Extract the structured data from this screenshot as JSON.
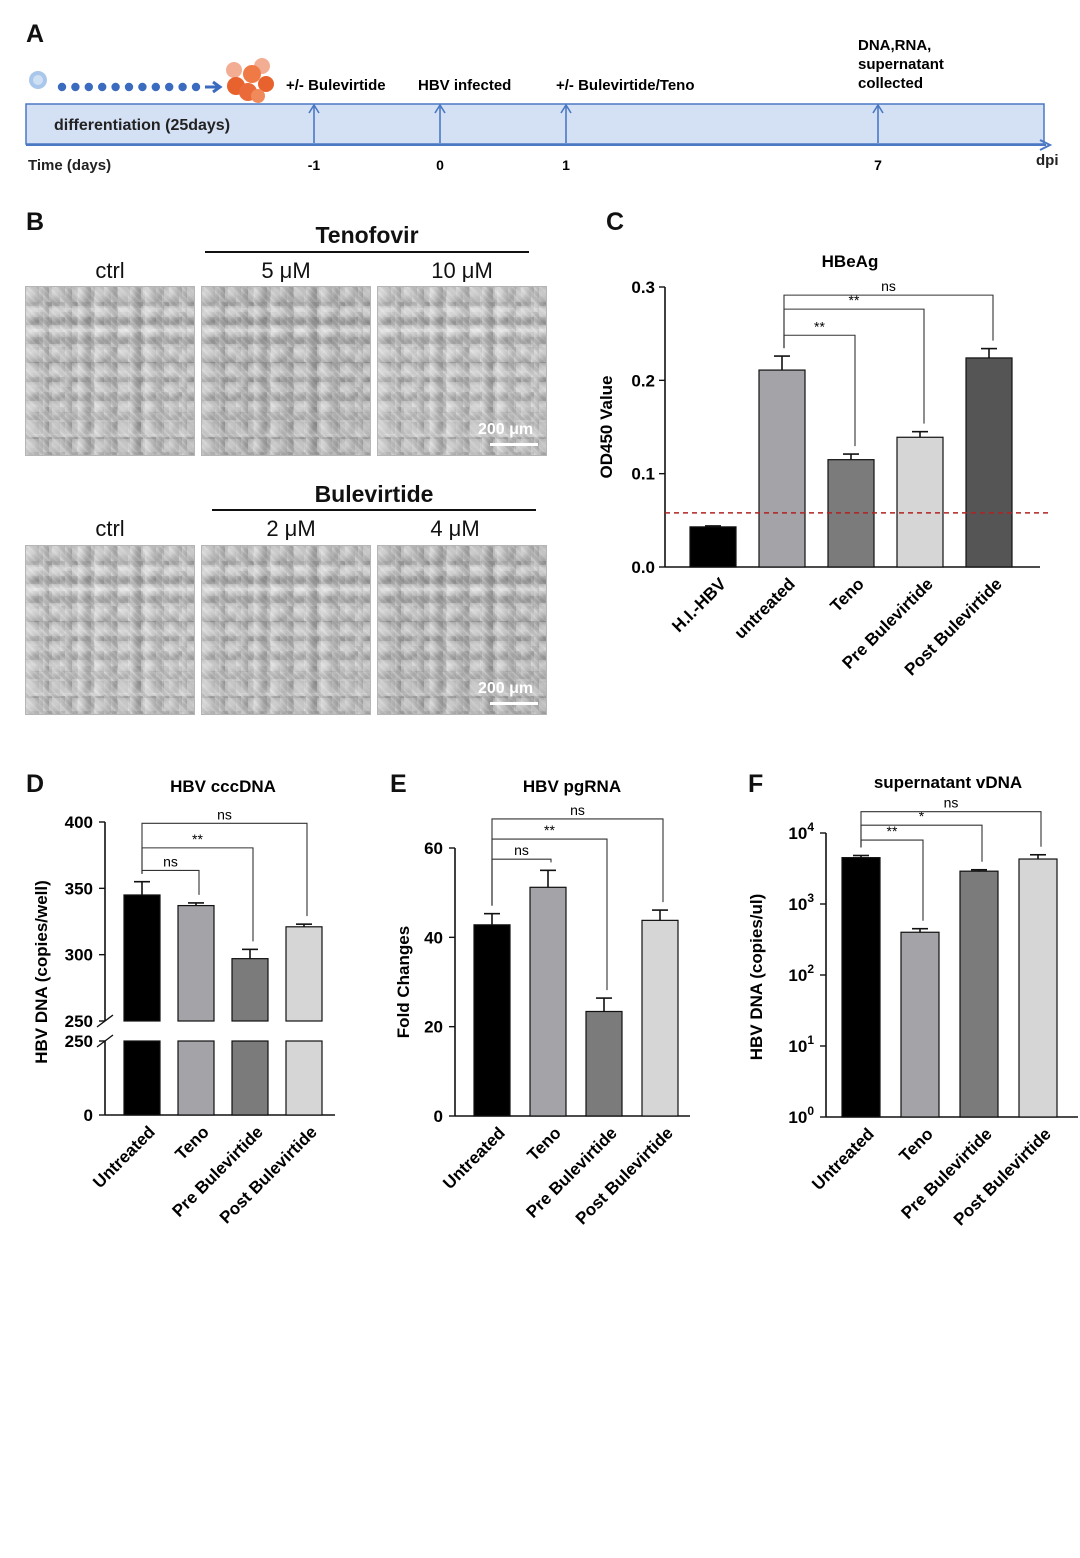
{
  "panels": {
    "a": "A",
    "b": "B",
    "c": "C",
    "d": "D",
    "e": "E",
    "f": "F"
  },
  "timeline": {
    "differentiation_label": "differentiation  (25days)",
    "time_label": "Time (days)",
    "unit_label": "dpi",
    "events": [
      {
        "day": "-1",
        "label": "+/- Bulevirtide"
      },
      {
        "day": "0",
        "label": "HBV infected"
      },
      {
        "day": "1",
        "label": "+/- Bulevirtide/Teno"
      },
      {
        "day": "7",
        "label_lines": [
          "DNA,RNA,",
          "supernatant",
          "collected"
        ]
      }
    ],
    "colors": {
      "band": "#d4e0f4",
      "arrow": "#4a78c3",
      "dots": "#3a6bbf",
      "cells": "#ea6a3a"
    }
  },
  "micrographs": {
    "top": {
      "title": "Tenofovir",
      "conditions": [
        "ctrl",
        "5 μM",
        "10 μM"
      ],
      "scale": "200 μm"
    },
    "bottom": {
      "title": "Bulevirtide",
      "conditions": [
        "ctrl",
        "2 μM",
        "4 μM"
      ],
      "scale": "200 μm"
    }
  },
  "chart_data": [
    {
      "id": "C",
      "type": "bar",
      "title": "HBeAg",
      "ylabel": "OD450 Value",
      "categories": [
        "H.I.-HBV",
        "untreated",
        "Teno",
        "Pre Bulevirtide",
        "Post Bulevirtide"
      ],
      "values": [
        0.043,
        0.211,
        0.115,
        0.139,
        0.224
      ],
      "errors": [
        0.001,
        0.015,
        0.006,
        0.006,
        0.01
      ],
      "colors": [
        "#000000",
        "#a3a3a8",
        "#7b7b7b",
        "#d6d6d6",
        "#555555"
      ],
      "yticks": [
        "0.0",
        "0.1",
        "0.2",
        "0.3"
      ],
      "ylim": [
        0,
        0.3
      ],
      "threshold": 0.058,
      "threshold_color": "#b22222",
      "significance": [
        {
          "from": 1,
          "to": 2,
          "label": "**"
        },
        {
          "from": 1,
          "to": 3,
          "label": "**"
        },
        {
          "from": 1,
          "to": 4,
          "label": "ns"
        }
      ]
    },
    {
      "id": "D",
      "type": "bar",
      "title": "HBV cccDNA",
      "ylabel": "HBV DNA (copies/well)",
      "categories": [
        "Untreated",
        "Teno",
        "Pre Bulevirtide",
        "Post Bulevirtide"
      ],
      "values": [
        345,
        337,
        297,
        321
      ],
      "errors": [
        10,
        2,
        7,
        2
      ],
      "colors": [
        "#000000",
        "#a3a3a8",
        "#7b7b7b",
        "#d6d6d6"
      ],
      "yticks_upper": [
        "250",
        "300",
        "350",
        "400"
      ],
      "yticks_lower": [
        "0",
        "250"
      ],
      "ylim_upper": [
        250,
        400
      ],
      "ylim_lower": [
        0,
        250
      ],
      "axis_break": true,
      "significance": [
        {
          "from": 0,
          "to": 1,
          "label": "ns"
        },
        {
          "from": 0,
          "to": 2,
          "label": "**"
        },
        {
          "from": 0,
          "to": 3,
          "label": "ns"
        }
      ]
    },
    {
      "id": "E",
      "type": "bar",
      "title": "HBV pgRNA",
      "ylabel": "Fold Changes",
      "categories": [
        "Untreated",
        "Teno",
        "Pre Bulevirtide",
        "Post Bulevirtide"
      ],
      "values": [
        42.8,
        51.2,
        23.4,
        43.8
      ],
      "errors": [
        2.5,
        3.8,
        3.0,
        2.3
      ],
      "colors": [
        "#000000",
        "#a3a3a8",
        "#7b7b7b",
        "#d6d6d6"
      ],
      "yticks": [
        "0",
        "20",
        "40",
        "60"
      ],
      "ylim": [
        0,
        60
      ],
      "significance": [
        {
          "from": 0,
          "to": 1,
          "label": "ns"
        },
        {
          "from": 0,
          "to": 2,
          "label": "**"
        },
        {
          "from": 0,
          "to": 3,
          "label": "ns"
        }
      ]
    },
    {
      "id": "F",
      "type": "bar",
      "title": "supernatant vDNA",
      "ylabel": "HBV DNA (copies/ul)",
      "yscale": "log",
      "categories": [
        "Untreated",
        "Teno",
        "Pre Bulevirtide",
        "Post Bulevirtide"
      ],
      "values": [
        4500,
        400,
        2900,
        4300
      ],
      "errors_log10": [
        0.03,
        0.05,
        0.02,
        0.06
      ],
      "colors": [
        "#000000",
        "#a3a3a8",
        "#7b7b7b",
        "#d6d6d6"
      ],
      "yticks": [
        {
          "base": "10",
          "exp": "0"
        },
        {
          "base": "10",
          "exp": "1"
        },
        {
          "base": "10",
          "exp": "2"
        },
        {
          "base": "10",
          "exp": "3"
        },
        {
          "base": "10",
          "exp": "4"
        }
      ],
      "ylim_log10": [
        0,
        4
      ],
      "significance": [
        {
          "from": 0,
          "to": 1,
          "label": "**"
        },
        {
          "from": 0,
          "to": 2,
          "label": "*"
        },
        {
          "from": 0,
          "to": 3,
          "label": "ns"
        }
      ]
    }
  ]
}
